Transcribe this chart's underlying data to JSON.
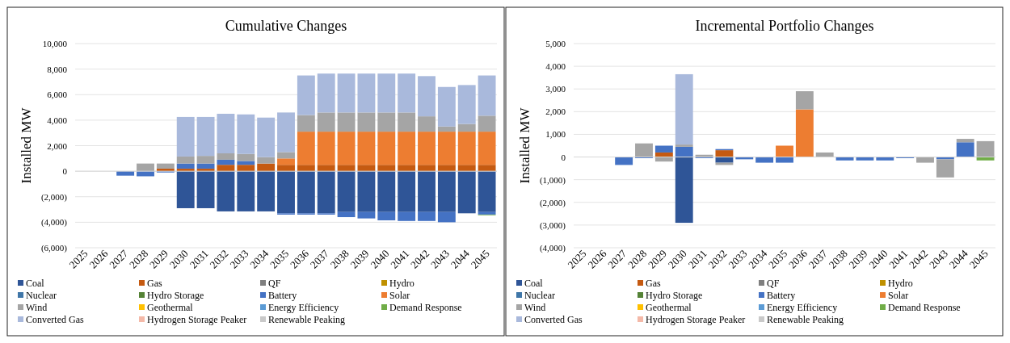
{
  "chart_data": [
    {
      "type": "bar",
      "stacked": true,
      "title": "Cumulative Changes",
      "ylabel": "Installed MW",
      "grid": "y",
      "legend": "bottom",
      "categories": [
        "2025",
        "2026",
        "2027",
        "2028",
        "2029",
        "2030",
        "2031",
        "2032",
        "2033",
        "2034",
        "2035",
        "2036",
        "2037",
        "2038",
        "2039",
        "2040",
        "2041",
        "2042",
        "2043",
        "2044",
        "2045"
      ],
      "ylim": [
        -6000,
        10000
      ],
      "yticks": [
        {
          "value": -6000,
          "label": "(6,000)"
        },
        {
          "value": -4000,
          "label": "(4,000)"
        },
        {
          "value": -2000,
          "label": "(2,000)"
        },
        0,
        {
          "value": 2000,
          "label": "2,000"
        },
        {
          "value": 4000,
          "label": "4,000"
        },
        {
          "value": 6000,
          "label": "6,000"
        },
        {
          "value": 8000,
          "label": "8,000"
        },
        {
          "value": 10000,
          "label": "10,000"
        }
      ],
      "series": [
        {
          "name": "Coal",
          "color": "#2f5597",
          "values": [
            null,
            null,
            null,
            null,
            null,
            -2900,
            -2900,
            -3150,
            -3150,
            -3150,
            -3300,
            -3300,
            -3300,
            -3200,
            -3200,
            -3200,
            -3200,
            -3200,
            -3200,
            -3300,
            -3200
          ]
        },
        {
          "name": "Gas",
          "color": "#c55a11",
          "values": [
            null,
            null,
            null,
            null,
            200,
            200,
            200,
            500,
            500,
            600,
            500,
            500,
            500,
            500,
            500,
            500,
            500,
            500,
            500,
            500,
            500
          ]
        },
        {
          "name": "QF",
          "color": "#7f7f7f",
          "values": [
            null,
            null,
            null,
            null,
            null,
            null,
            null,
            null,
            null,
            null,
            null,
            null,
            null,
            null,
            null,
            null,
            null,
            null,
            null,
            null,
            null
          ]
        },
        {
          "name": "Hydro",
          "color": "#bf9000",
          "values": [
            null,
            null,
            null,
            null,
            null,
            null,
            null,
            null,
            null,
            null,
            null,
            null,
            null,
            null,
            null,
            null,
            null,
            null,
            null,
            null,
            null
          ]
        },
        {
          "name": "Nuclear",
          "color": "#3f76a8",
          "values": [
            null,
            null,
            null,
            null,
            null,
            null,
            null,
            null,
            null,
            null,
            null,
            null,
            null,
            null,
            null,
            null,
            null,
            null,
            null,
            null,
            null
          ]
        },
        {
          "name": "Hydro Storage",
          "color": "#548235",
          "values": [
            null,
            null,
            null,
            null,
            null,
            null,
            null,
            null,
            null,
            null,
            null,
            null,
            null,
            null,
            null,
            null,
            null,
            null,
            null,
            null,
            null
          ]
        },
        {
          "name": "Battery",
          "color": "#4472c4",
          "values": [
            null,
            null,
            -350,
            -400,
            -100,
            400,
            400,
            400,
            300,
            null,
            -100,
            -100,
            -100,
            -400,
            -500,
            -650,
            -700,
            -700,
            -800,
            null,
            -200
          ]
        },
        {
          "name": "Solar",
          "color": "#ed7d31",
          "values": [
            null,
            null,
            null,
            null,
            null,
            null,
            null,
            null,
            null,
            null,
            500,
            2600,
            2600,
            2600,
            2600,
            2600,
            2600,
            2600,
            2600,
            2600,
            2600
          ]
        },
        {
          "name": "Wind",
          "color": "#a5a5a5",
          "values": [
            null,
            null,
            null,
            600,
            400,
            550,
            600,
            500,
            550,
            500,
            500,
            1300,
            1500,
            1500,
            1500,
            1500,
            1500,
            1200,
            400,
            600,
            1250
          ]
        },
        {
          "name": "Geothermal",
          "color": "#ffc000",
          "values": [
            null,
            null,
            null,
            null,
            null,
            null,
            null,
            null,
            null,
            null,
            null,
            null,
            null,
            null,
            null,
            null,
            null,
            null,
            null,
            null,
            null
          ]
        },
        {
          "name": "Energy Efficiency",
          "color": "#5b9bd5",
          "values": [
            null,
            null,
            null,
            null,
            null,
            null,
            null,
            null,
            null,
            null,
            null,
            null,
            null,
            null,
            null,
            null,
            null,
            null,
            null,
            null,
            null
          ]
        },
        {
          "name": "Demand Response",
          "color": "#70ad47",
          "values": [
            null,
            null,
            null,
            null,
            null,
            null,
            null,
            null,
            null,
            null,
            null,
            null,
            null,
            null,
            null,
            null,
            null,
            null,
            null,
            null,
            -50
          ]
        },
        {
          "name": "Converted Gas",
          "color": "#a9b9dc",
          "values": [
            null,
            null,
            null,
            null,
            null,
            3100,
            3050,
            3100,
            3100,
            3100,
            3100,
            3100,
            3050,
            3050,
            3050,
            3050,
            3050,
            3150,
            3100,
            3050,
            3150
          ]
        },
        {
          "name": "Hydrogen Storage Peaker",
          "color": "#f4b9a8",
          "values": [
            null,
            null,
            null,
            null,
            null,
            null,
            null,
            null,
            null,
            null,
            null,
            null,
            null,
            null,
            null,
            null,
            null,
            null,
            null,
            null,
            null
          ]
        },
        {
          "name": "Renewable Peaking",
          "color": "#c9c9c9",
          "values": [
            null,
            null,
            null,
            null,
            null,
            null,
            null,
            null,
            null,
            null,
            null,
            null,
            null,
            null,
            null,
            null,
            null,
            null,
            null,
            null,
            null
          ]
        }
      ]
    },
    {
      "type": "bar",
      "stacked": true,
      "title": "Incremental Portfolio Changes",
      "ylabel": "Installed MW",
      "grid": "y",
      "legend": "bottom",
      "categories": [
        "2025",
        "2026",
        "2027",
        "2028",
        "2029",
        "2030",
        "2031",
        "2032",
        "2033",
        "2034",
        "2035",
        "2036",
        "2037",
        "2038",
        "2039",
        "2040",
        "2041",
        "2042",
        "2043",
        "2044",
        "2045"
      ],
      "ylim": [
        -4000,
        5000
      ],
      "yticks": [
        {
          "value": -4000,
          "label": "(4,000)"
        },
        {
          "value": -3000,
          "label": "(3,000)"
        },
        {
          "value": -2000,
          "label": "(2,000)"
        },
        {
          "value": -1000,
          "label": "(1,000)"
        },
        0,
        {
          "value": 1000,
          "label": "1,000"
        },
        {
          "value": 2000,
          "label": "2,000"
        },
        {
          "value": 3000,
          "label": "3,000"
        },
        {
          "value": 4000,
          "label": "4,000"
        },
        {
          "value": 5000,
          "label": "5,000"
        }
      ],
      "series": [
        {
          "name": "Coal",
          "color": "#2f5597",
          "values": [
            null,
            null,
            null,
            null,
            null,
            -2900,
            null,
            -250,
            null,
            null,
            null,
            null,
            null,
            null,
            null,
            null,
            null,
            null,
            null,
            null,
            null
          ]
        },
        {
          "name": "Gas",
          "color": "#c55a11",
          "values": [
            null,
            null,
            null,
            null,
            200,
            null,
            null,
            300,
            null,
            null,
            null,
            null,
            null,
            null,
            null,
            null,
            null,
            null,
            null,
            null,
            null
          ]
        },
        {
          "name": "QF",
          "color": "#7f7f7f",
          "values": [
            null,
            null,
            null,
            null,
            null,
            null,
            null,
            null,
            null,
            null,
            null,
            null,
            null,
            null,
            null,
            null,
            null,
            null,
            null,
            null,
            null
          ]
        },
        {
          "name": "Hydro",
          "color": "#bf9000",
          "values": [
            null,
            null,
            null,
            null,
            null,
            null,
            null,
            null,
            null,
            null,
            null,
            null,
            null,
            null,
            null,
            null,
            null,
            null,
            null,
            null,
            null
          ]
        },
        {
          "name": "Nuclear",
          "color": "#3f76a8",
          "values": [
            null,
            null,
            null,
            null,
            null,
            null,
            null,
            null,
            null,
            null,
            null,
            null,
            null,
            null,
            null,
            null,
            null,
            null,
            null,
            null,
            null
          ]
        },
        {
          "name": "Hydro Storage",
          "color": "#548235",
          "values": [
            null,
            null,
            null,
            null,
            null,
            null,
            null,
            null,
            null,
            null,
            null,
            null,
            null,
            null,
            null,
            null,
            null,
            null,
            null,
            null,
            null
          ]
        },
        {
          "name": "Battery",
          "color": "#4472c4",
          "values": [
            null,
            null,
            -350,
            -50,
            300,
            450,
            -50,
            50,
            -100,
            -250,
            -250,
            null,
            null,
            -150,
            -150,
            -150,
            -50,
            null,
            -100,
            650,
            null
          ]
        },
        {
          "name": "Solar",
          "color": "#ed7d31",
          "values": [
            null,
            null,
            null,
            null,
            null,
            null,
            null,
            null,
            null,
            null,
            500,
            2100,
            null,
            null,
            null,
            null,
            null,
            null,
            null,
            null,
            null
          ]
        },
        {
          "name": "Wind",
          "color": "#a5a5a5",
          "values": [
            null,
            null,
            null,
            600,
            -200,
            100,
            100,
            -100,
            null,
            null,
            null,
            800,
            200,
            null,
            null,
            null,
            null,
            -250,
            -800,
            150,
            700
          ]
        },
        {
          "name": "Geothermal",
          "color": "#ffc000",
          "values": [
            null,
            null,
            null,
            null,
            null,
            null,
            null,
            null,
            null,
            null,
            null,
            null,
            null,
            null,
            null,
            null,
            null,
            null,
            null,
            null,
            null
          ]
        },
        {
          "name": "Energy Efficiency",
          "color": "#5b9bd5",
          "values": [
            null,
            null,
            null,
            null,
            null,
            null,
            null,
            null,
            null,
            null,
            null,
            null,
            null,
            null,
            null,
            null,
            null,
            null,
            null,
            null,
            null
          ]
        },
        {
          "name": "Demand Response",
          "color": "#70ad47",
          "values": [
            null,
            null,
            null,
            null,
            null,
            null,
            null,
            null,
            null,
            null,
            null,
            null,
            null,
            null,
            null,
            null,
            null,
            null,
            null,
            null,
            -150
          ]
        },
        {
          "name": "Converted Gas",
          "color": "#a9b9dc",
          "values": [
            null,
            null,
            null,
            null,
            null,
            3100,
            null,
            null,
            null,
            null,
            null,
            null,
            null,
            null,
            null,
            null,
            null,
            null,
            null,
            null,
            null
          ]
        },
        {
          "name": "Hydrogen Storage Peaker",
          "color": "#f4b9a8",
          "values": [
            null,
            null,
            null,
            null,
            null,
            null,
            null,
            null,
            null,
            null,
            null,
            null,
            null,
            null,
            null,
            null,
            null,
            null,
            null,
            null,
            null
          ]
        },
        {
          "name": "Renewable Peaking",
          "color": "#c9c9c9",
          "values": [
            null,
            null,
            null,
            null,
            null,
            null,
            null,
            null,
            null,
            null,
            null,
            null,
            null,
            null,
            null,
            null,
            null,
            null,
            null,
            null,
            null
          ]
        }
      ]
    }
  ]
}
